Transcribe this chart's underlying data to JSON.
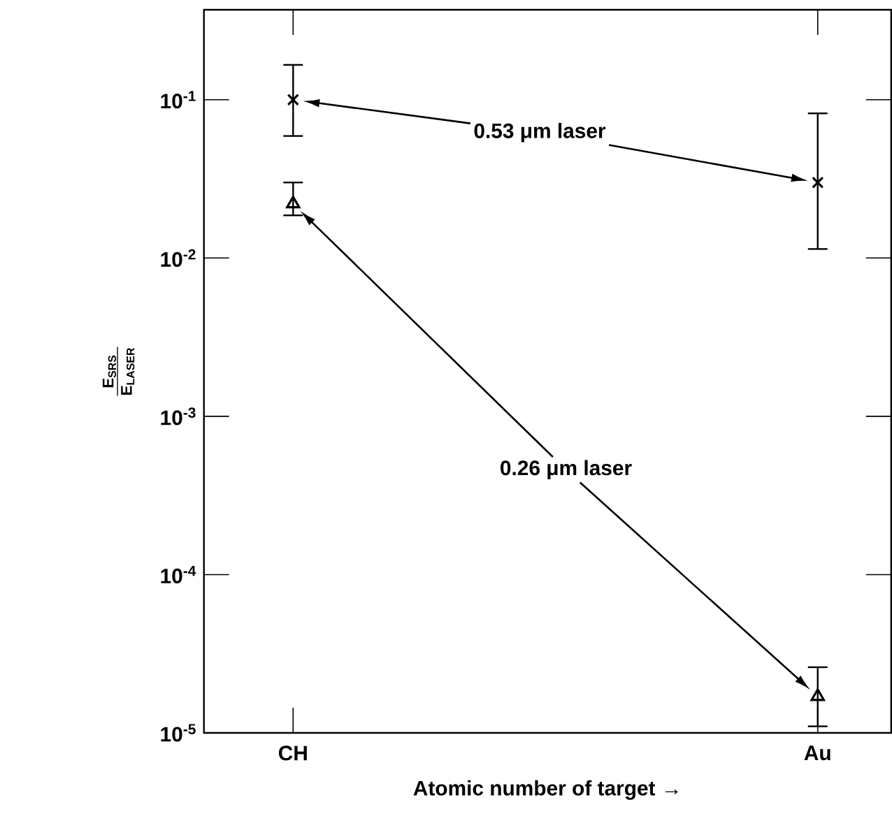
{
  "chart_data": {
    "type": "scatter",
    "categories": [
      "CH",
      "Au"
    ],
    "xlabel": "Atomic number of target →",
    "ylabel": "\\frac{\\text{E}_{\\text{SRS}}}{\\text{E}_{\\text{LASER}}}",
    "log": "y",
    "ylim": [
      1e-05,
      0.37
    ],
    "yticks": [
      {
        "value": 1e-05,
        "label": "10$^{-5}$"
      },
      {
        "value": 0.0001,
        "label": "10$^{-4}$"
      },
      {
        "value": 0.001,
        "label": "10$^{-3}$"
      },
      {
        "value": 0.01,
        "label": "10$^{-2}$"
      },
      {
        "value": 0.1,
        "label": "10$^{-1}$"
      }
    ],
    "annotations": [
      "0.53 μm laser",
      "0.26 μm laser"
    ],
    "series": [
      {
        "color": "#000000",
        "marker": "cross",
        "values": [
          0.1,
          0.03
        ],
        "errors": [
          [
            0.059,
            0.166
          ],
          [
            0.0114,
            0.082
          ]
        ]
      },
      {
        "color": "#000000",
        "marker": "triangle",
        "values": [
          0.022,
          1.7e-05
        ],
        "errors": [
          [
            0.0186,
            0.03
          ],
          [
            1.1e-05,
            2.6e-05
          ]
        ]
      }
    ]
  }
}
